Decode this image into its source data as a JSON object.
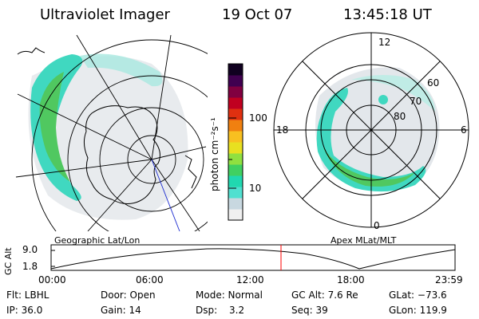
{
  "header": {
    "instrument": "Ultraviolet Imager",
    "date": "19 Oct 07",
    "time": "13:45:18 UT"
  },
  "colorbar": {
    "unit_label": "photon cm⁻²s⁻¹",
    "ticks": [
      "100",
      "10"
    ],
    "scale": "log",
    "colors": [
      "#f0f0f0",
      "#c8d8e0",
      "#50e0d0",
      "#20d8b0",
      "#40d060",
      "#90e040",
      "#e8e020",
      "#f8c020",
      "#f08010",
      "#e03010",
      "#c00020",
      "#800040",
      "#400050",
      "#100020"
    ]
  },
  "left_map": {
    "caption": "Geographic Lat/Lon"
  },
  "right_map": {
    "caption": "Apex MLat/MLT",
    "mlt_labels": {
      "top": "12",
      "bottom": "0",
      "left": "18",
      "right": "6"
    },
    "lat_labels": [
      "60",
      "70",
      "80"
    ]
  },
  "altitude_plot": {
    "ylabel": "GC Alt",
    "yticks": [
      "9.0",
      "1.8"
    ],
    "xticks": [
      "00:00",
      "06:00",
      "12:00",
      "18:00",
      "23:59"
    ],
    "marker_time": "13:45:18",
    "marker_color": "#ff0000"
  },
  "info": {
    "row1": {
      "flt": "Flt: LBHL",
      "door": "Door: Open",
      "mode": "Mode: Normal",
      "gcalt": "GC Alt: 7.6 Re",
      "glat": "GLat: −73.6"
    },
    "row2": {
      "ip": "IP: 36.0",
      "gain": "Gain: 14",
      "dsp_label": "Dsp:",
      "dsp_value": "3.2",
      "seq": "Seq: 39",
      "glon": "GLon: 119.9"
    }
  }
}
